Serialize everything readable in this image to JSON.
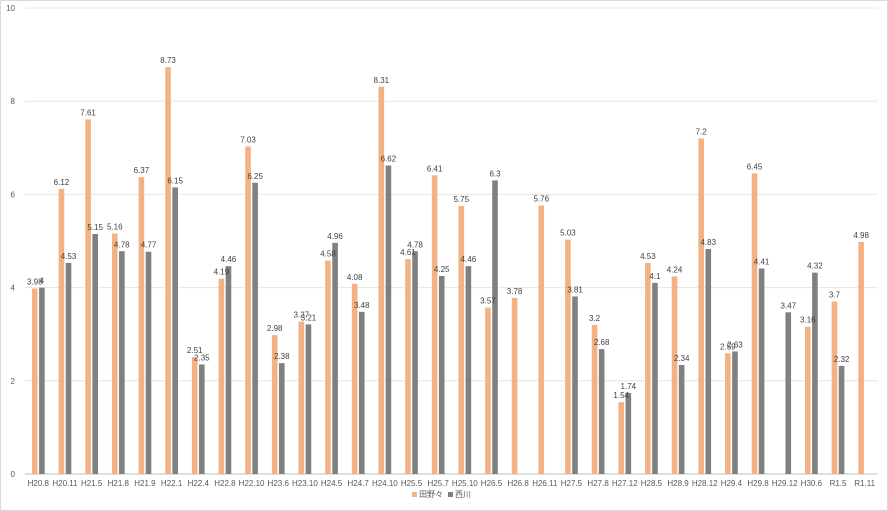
{
  "chart_data": {
    "type": "bar",
    "title": "",
    "xlabel": "",
    "ylabel": "",
    "ylim": [
      0,
      10
    ],
    "yticks": [
      0,
      2,
      4,
      6,
      8,
      10
    ],
    "grid": true,
    "legend_position": "bottom",
    "categories": [
      "H20.8",
      "H20.11",
      "H21.5",
      "H21.8",
      "H21.9",
      "H22.1",
      "H22.4",
      "H22.8",
      "H22.10",
      "H23.6",
      "H23.10",
      "H24.5",
      "H24.7",
      "H24.10",
      "H25.5",
      "H25.7",
      "H25.10",
      "H26.5",
      "H26.8",
      "H26.11",
      "H27.5",
      "H27.8",
      "H27.12",
      "H28.5",
      "H28.9",
      "H28.12",
      "H29.4",
      "H29.8",
      "H29.12",
      "H30.6",
      "R1.5",
      "R1.11"
    ],
    "series": [
      {
        "name": "田野々",
        "color": "#F4B183",
        "values": [
          3.98,
          6.12,
          7.61,
          5.16,
          6.37,
          8.73,
          2.51,
          4.19,
          7.03,
          2.98,
          3.27,
          4.58,
          4.08,
          8.31,
          4.61,
          6.41,
          5.75,
          3.57,
          3.78,
          5.76,
          5.03,
          3.2,
          1.54,
          4.53,
          4.24,
          7.2,
          2.59,
          6.45,
          null,
          3.16,
          3.7,
          4.98
        ],
        "labels": [
          "3.98",
          "6.12",
          "7.61",
          "5.16",
          "6.37",
          "8.73",
          "2.51",
          "4.19",
          "7.03",
          "2.98",
          "3.27",
          "4.58",
          "4.08",
          "8.31",
          "4.61",
          "6.41",
          "5.75",
          "3.57",
          "3.78",
          "5.76",
          "5.03",
          "3.2",
          "1.54",
          "4.53",
          "4.24",
          "7.2",
          "2.59",
          "6.45",
          "",
          "3.16",
          "3.7",
          "4.98"
        ]
      },
      {
        "name": "西川",
        "color": "#808080",
        "values": [
          4,
          4.53,
          5.15,
          4.78,
          4.77,
          6.15,
          2.35,
          4.46,
          6.25,
          2.38,
          3.21,
          4.96,
          3.48,
          6.62,
          4.78,
          4.25,
          4.46,
          6.3,
          null,
          null,
          3.81,
          2.68,
          1.74,
          4.1,
          2.34,
          4.83,
          2.63,
          4.41,
          3.47,
          4.32,
          2.32,
          null
        ],
        "labels": [
          "4",
          "4.53",
          "5.15",
          "4.78",
          "4.77",
          "6.15",
          "2.35",
          "4.46",
          "6.25",
          "2.38",
          "3.21",
          "4.96",
          "3.48",
          "6.62",
          "4.78",
          "4.25",
          "4.46",
          "6.3",
          "",
          "",
          "3.81",
          "2.68",
          "1.74",
          "4.1",
          "2.34",
          "4.83",
          "2.63",
          "4.41",
          "3.47",
          "4.32",
          "2.32",
          ""
        ]
      }
    ]
  }
}
